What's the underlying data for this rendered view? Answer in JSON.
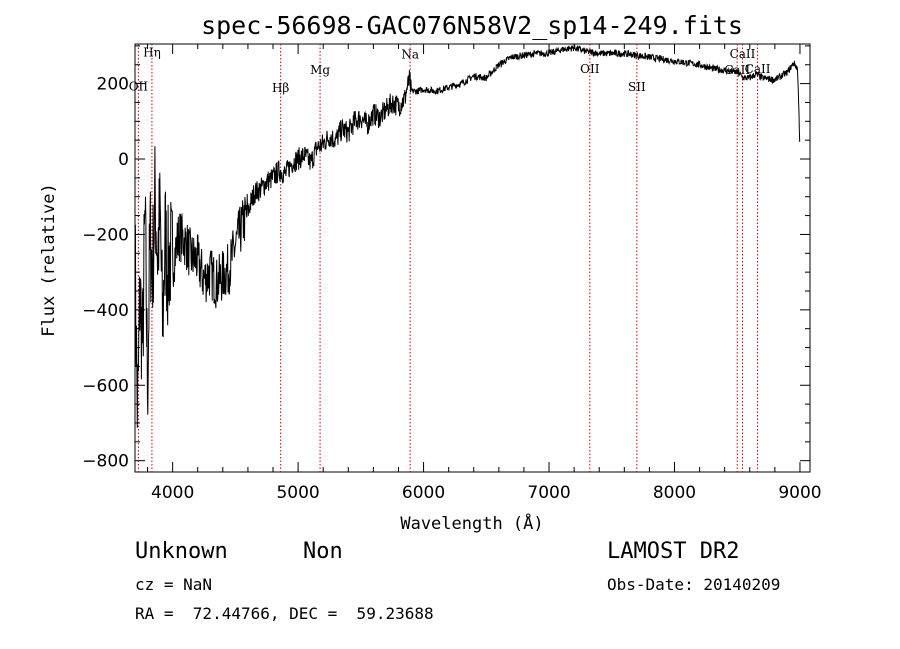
{
  "chart_data": {
    "type": "line",
    "title": "spec-56698-GAC076N58V2_sp14-249.fits",
    "xlabel": "Wavelength (Å)",
    "ylabel": "Flux (relative)",
    "xlim": [
      3700,
      9080
    ],
    "ylim": [
      -830,
      305
    ],
    "xticks": [
      4000,
      5000,
      6000,
      7000,
      8000,
      9000
    ],
    "xtick_labels": [
      "4000",
      "5000",
      "6000",
      "7000",
      "8000",
      "9000"
    ],
    "yticks": [
      -800,
      -600,
      -400,
      -200,
      0,
      200
    ],
    "ytick_labels": [
      "−800",
      "−600",
      "−400",
      "−200",
      "0",
      "200"
    ],
    "grid": false,
    "series": [
      {
        "color": "#000000",
        "x": [
          3700,
          3720,
          3740,
          3760,
          3780,
          3800,
          3820,
          3840,
          3860,
          3880,
          3900,
          3920,
          3940,
          3960,
          3980,
          4000,
          4050,
          4100,
          4150,
          4200,
          4250,
          4300,
          4350,
          4400,
          4450,
          4500,
          4550,
          4600,
          4650,
          4700,
          4750,
          4800,
          4850,
          4900,
          4950,
          5000,
          5050,
          5100,
          5150,
          5200,
          5250,
          5300,
          5350,
          5400,
          5450,
          5500,
          5550,
          5600,
          5650,
          5700,
          5750,
          5800,
          5850,
          5870,
          5890,
          5900,
          5950,
          6000,
          6100,
          6200,
          6300,
          6400,
          6500,
          6600,
          6700,
          6800,
          6900,
          7000,
          7100,
          7200,
          7300,
          7400,
          7500,
          7600,
          7700,
          7800,
          7900,
          8000,
          8100,
          8200,
          8300,
          8400,
          8500,
          8550,
          8600,
          8650,
          8700,
          8800,
          8900,
          8950,
          8980,
          8990,
          9000
        ],
        "y": [
          -250,
          -700,
          -350,
          -500,
          -150,
          -600,
          -200,
          -300,
          -100,
          -250,
          -150,
          -450,
          -200,
          -300,
          -250,
          -280,
          -200,
          -220,
          -260,
          -270,
          -320,
          -300,
          -330,
          -310,
          -290,
          -230,
          -180,
          -140,
          -90,
          -80,
          -60,
          -50,
          -30,
          -40,
          -10,
          0,
          10,
          -10,
          30,
          40,
          60,
          50,
          80,
          70,
          100,
          110,
          90,
          120,
          110,
          130,
          150,
          140,
          160,
          190,
          210,
          180,
          180,
          185,
          180,
          190,
          200,
          220,
          215,
          250,
          270,
          275,
          280,
          280,
          290,
          295,
          285,
          280,
          280,
          280,
          275,
          270,
          265,
          260,
          255,
          250,
          240,
          235,
          230,
          215,
          215,
          225,
          215,
          210,
          230,
          255,
          240,
          150,
          20
        ]
      }
    ],
    "lines": [
      {
        "label": "Hη",
        "x": 3835,
        "label_y": 272
      },
      {
        "label": "OII",
        "x": 3727,
        "label_y": 182
      },
      {
        "label": "Hβ",
        "x": 4861,
        "label_y": 178
      },
      {
        "label": "Mg",
        "x": 5175,
        "label_y": 225
      },
      {
        "label": "Na",
        "x": 5893,
        "label_y": 267
      },
      {
        "label": "OII",
        "x": 7325,
        "label_y": 228
      },
      {
        "label": "SII",
        "x": 7700,
        "label_y": 180
      },
      {
        "label": "CaII",
        "x": 8500,
        "label_y": 225
      },
      {
        "label": "CaII",
        "x": 8542,
        "label_y": 268
      },
      {
        "label": "CaII",
        "x": 8662,
        "label_y": 228
      }
    ]
  },
  "info": {
    "object_class": "Unknown",
    "object_subclass": "Non",
    "survey": "LAMOST DR2",
    "cz": "cz = NaN",
    "obs_date": "Obs-Date: 20140209",
    "coords": "RA =  72.44766, DEC =  59.23688"
  },
  "colors": {
    "spectrum": "#000000",
    "line_marker": "#cc0000"
  }
}
